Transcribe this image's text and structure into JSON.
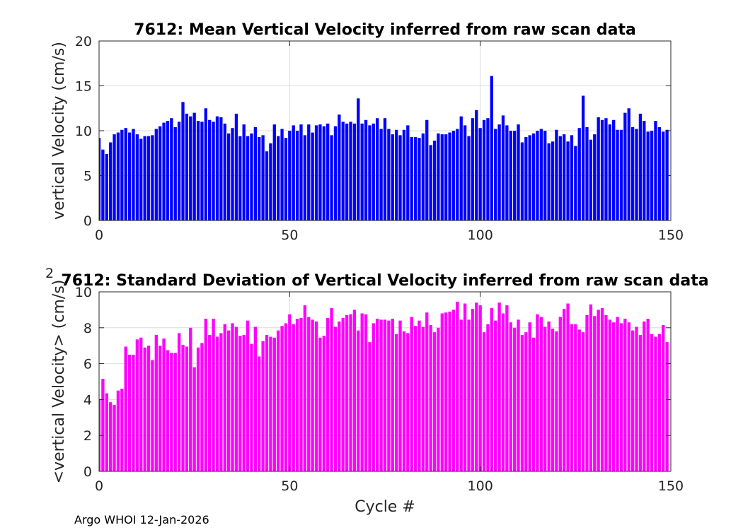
{
  "chart_data": [
    {
      "type": "bar",
      "title": "7612: Mean Vertical Velocity inferred from raw scan data",
      "xlabel": "",
      "ylabel": "vertical Velocity (cm/s)",
      "xlim": [
        0,
        150
      ],
      "ylim": [
        0,
        20
      ],
      "xticks": [
        0,
        50,
        100,
        150
      ],
      "yticks": [
        0,
        5,
        10,
        15,
        20
      ],
      "grid": true,
      "color": "#0000ff",
      "x_start": 0,
      "values": [
        9.2,
        7.9,
        7.4,
        8.7,
        9.6,
        9.8,
        10.1,
        10.3,
        9.8,
        10.2,
        9.6,
        9.1,
        9.4,
        9.4,
        9.5,
        10.2,
        10.5,
        10.9,
        11.1,
        11.4,
        10.4,
        11.0,
        13.2,
        11.9,
        11.6,
        12.0,
        11.1,
        11.0,
        12.5,
        11.2,
        11.0,
        11.6,
        11.5,
        10.8,
        9.7,
        10.3,
        11.9,
        9.4,
        10.7,
        9.4,
        9.7,
        10.4,
        9.3,
        9.5,
        7.7,
        8.6,
        10.7,
        9.4,
        10.2,
        9.2,
        10.0,
        10.6,
        10.0,
        10.7,
        9.5,
        10.7,
        9.8,
        10.6,
        10.7,
        10.5,
        10.8,
        9.5,
        10.5,
        11.8,
        11.0,
        10.8,
        11.0,
        10.8,
        13.6,
        10.8,
        11.2,
        10.6,
        10.8,
        11.4,
        10.2,
        11.4,
        10.2,
        9.6,
        10.1,
        9.5,
        10.1,
        10.6,
        9.3,
        9.3,
        9.2,
        9.7,
        11.2,
        8.4,
        8.9,
        9.7,
        9.6,
        9.6,
        9.8,
        10.0,
        10.2,
        11.6,
        10.6,
        9.4,
        11.4,
        12.3,
        10.3,
        11.2,
        11.4,
        16.1,
        10.2,
        10.7,
        11.7,
        10.6,
        10.0,
        10.0,
        10.7,
        8.7,
        9.3,
        9.5,
        9.7,
        10.0,
        10.2,
        10.0,
        8.6,
        8.8,
        10.1,
        9.4,
        9.6,
        8.8,
        9.5,
        8.3,
        10.3,
        13.9,
        10.4,
        9.0,
        9.6,
        11.5,
        11.2,
        11.4,
        10.7,
        11.2,
        10.1,
        10.1,
        12.0,
        12.5,
        10.4,
        10.2,
        11.9,
        11.1,
        9.9,
        10.0,
        11.1,
        10.4,
        9.9,
        10.1
      ]
    },
    {
      "type": "bar",
      "title": "7612: Standard Deviation of Vertical Velocity inferred from raw scan data",
      "xlabel": "Cycle #",
      "ylabel": "<vertical Velocity> (cm/s)",
      "ylabel_superscript": "2",
      "xlim": [
        0,
        150
      ],
      "ylim": [
        0,
        10
      ],
      "xticks": [
        0,
        50,
        100,
        150
      ],
      "yticks": [
        0,
        2,
        4,
        6,
        8,
        10
      ],
      "grid": true,
      "color": "#ff00ff",
      "x_start": 0,
      "values": [
        4.0,
        5.15,
        4.35,
        3.85,
        3.7,
        4.5,
        4.6,
        6.95,
        6.5,
        6.5,
        7.35,
        7.45,
        6.9,
        7.0,
        6.2,
        7.6,
        7.0,
        7.4,
        6.75,
        6.6,
        6.6,
        7.7,
        7.05,
        6.95,
        8.0,
        5.8,
        6.9,
        7.15,
        8.5,
        7.6,
        8.5,
        7.5,
        7.7,
        8.2,
        7.85,
        8.25,
        8.05,
        7.55,
        7.6,
        8.4,
        7.1,
        8.05,
        6.4,
        7.25,
        7.6,
        7.5,
        7.45,
        7.85,
        8.1,
        8.25,
        8.75,
        8.2,
        8.5,
        8.55,
        9.25,
        8.6,
        8.45,
        8.35,
        7.45,
        7.55,
        8.55,
        9.1,
        8.05,
        8.35,
        8.55,
        8.7,
        8.75,
        9.0,
        7.85,
        8.8,
        8.75,
        7.2,
        8.25,
        8.5,
        8.45,
        8.45,
        8.4,
        8.5,
        7.65,
        8.4,
        7.8,
        7.7,
        8.6,
        8.1,
        8.4,
        8.05,
        8.85,
        8.15,
        7.75,
        8.0,
        8.8,
        8.85,
        8.9,
        9.0,
        9.45,
        8.45,
        9.35,
        8.45,
        9.05,
        9.4,
        9.25,
        7.75,
        8.2,
        9.1,
        8.4,
        9.4,
        8.8,
        9.25,
        8.3,
        8.0,
        8.45,
        7.6,
        7.75,
        8.3,
        7.45,
        8.75,
        8.6,
        8.05,
        8.35,
        7.95,
        7.8,
        8.6,
        9.05,
        9.35,
        8.2,
        8.2,
        7.9,
        7.75,
        8.7,
        9.3,
        8.65,
        9.0,
        9.1,
        8.7,
        8.45,
        8.3,
        8.6,
        8.25,
        8.5,
        8.3,
        7.85,
        8.05,
        7.6,
        8.35,
        8.5,
        7.65,
        7.5,
        7.65,
        8.15,
        7.2
      ]
    }
  ],
  "footer": {
    "text": "Argo WHOI 12-Jan-2026"
  }
}
